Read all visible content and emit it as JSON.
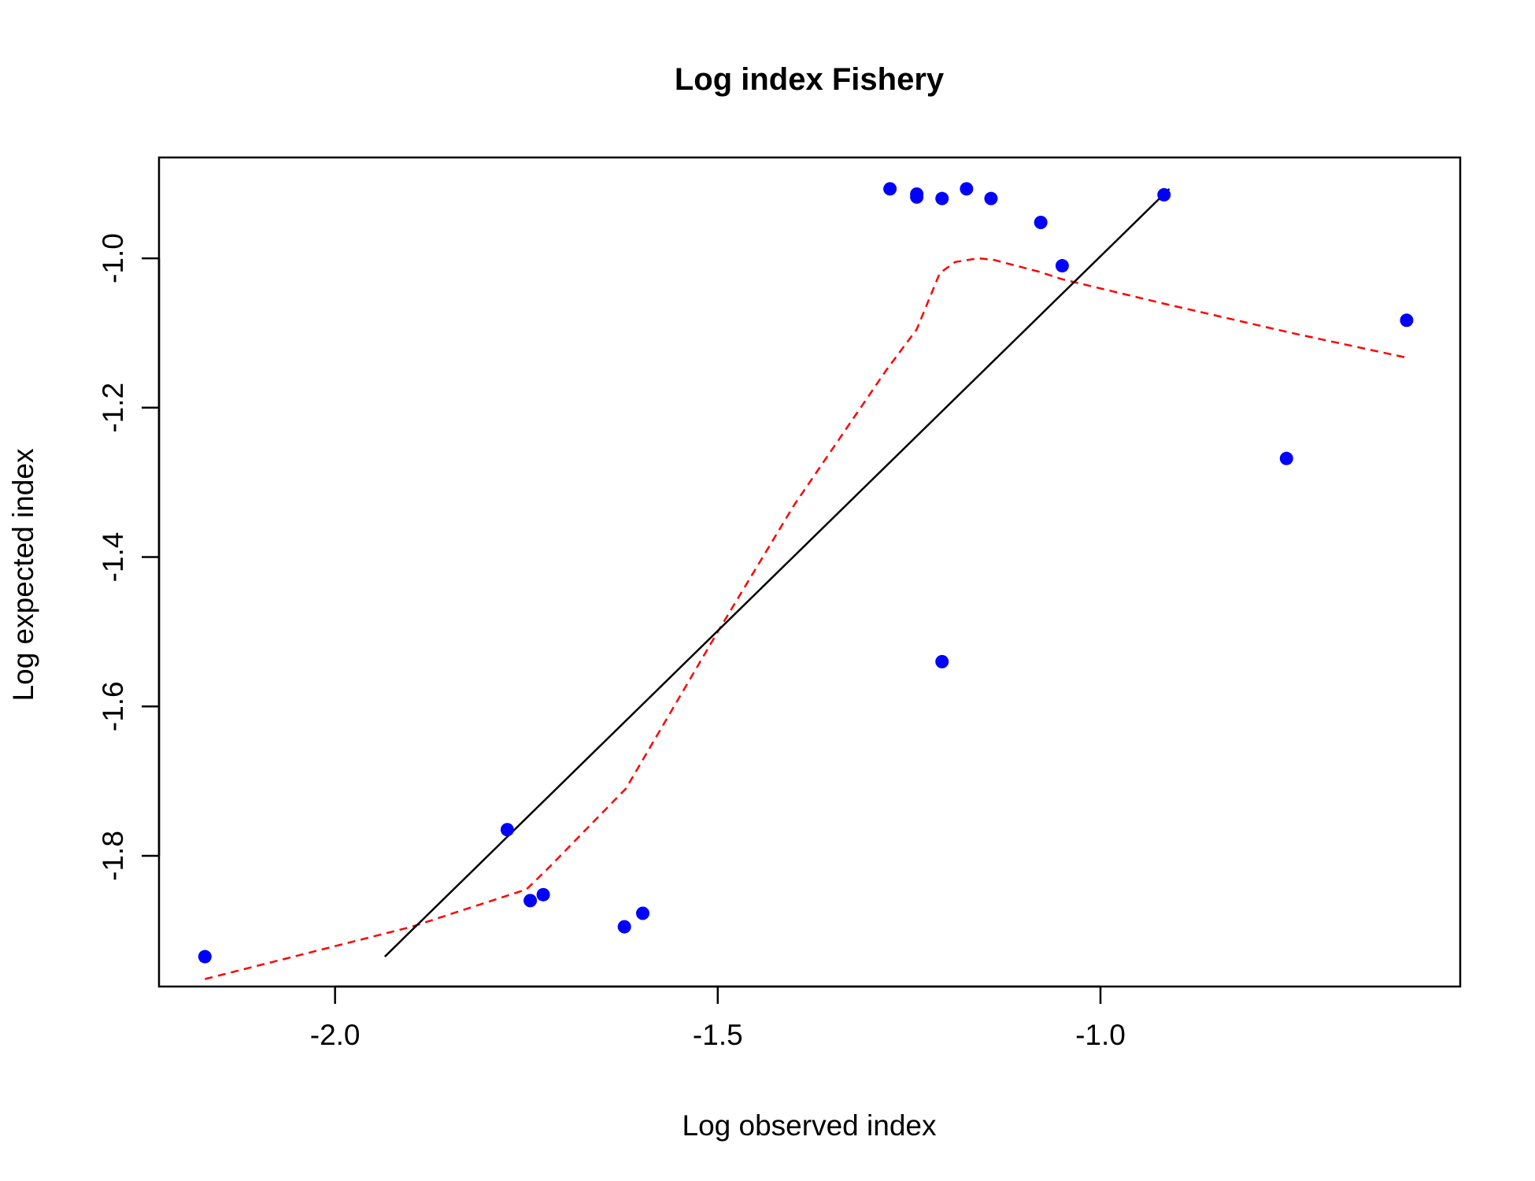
{
  "chart_data": {
    "type": "scatter",
    "title": "Log index Fishery",
    "xlabel": "Log observed index",
    "ylabel": "Log expected index",
    "xlim": [
      -2.23,
      -0.53
    ],
    "ylim": [
      -1.975,
      -0.865
    ],
    "x_ticks": [
      -2.0,
      -1.5,
      -1.0
    ],
    "x_tick_labels": [
      "-2.0",
      "-1.5",
      "-1.0"
    ],
    "y_ticks": [
      -1.8,
      -1.6,
      -1.4,
      -1.2,
      -1.0
    ],
    "y_tick_labels": [
      "-1.8",
      "-1.6",
      "-1.4",
      "-1.2",
      "-1.0"
    ],
    "grid": false,
    "points": {
      "color": "#0000ff",
      "x": [
        -2.17,
        -1.775,
        -1.745,
        -1.728,
        -1.622,
        -1.598,
        -1.275,
        -1.24,
        -1.24,
        -1.207,
        -1.207,
        -1.175,
        -1.143,
        -1.078,
        -1.05,
        -0.917,
        -0.757,
        -0.6
      ],
      "y": [
        -1.935,
        -1.765,
        -1.86,
        -1.852,
        -1.895,
        -1.877,
        -0.907,
        -0.914,
        -0.918,
        -0.92,
        -1.54,
        -0.907,
        -0.92,
        -0.952,
        -1.01,
        -0.915,
        -1.268,
        -1.083
      ]
    },
    "fit_line": {
      "color": "#000000",
      "style": "solid",
      "x": [
        -1.935,
        -0.91
      ],
      "y": [
        -1.935,
        -0.907
      ]
    },
    "smooth_line": {
      "color": "#ff0000",
      "style": "dashed",
      "x": [
        -2.17,
        -1.9,
        -1.75,
        -1.72,
        -1.62,
        -1.5,
        -1.4,
        -1.28,
        -1.24,
        -1.21,
        -1.19,
        -1.16,
        -1.14,
        -1.08,
        -1.05,
        -0.92,
        -0.75,
        -0.6
      ],
      "y": [
        -1.965,
        -1.895,
        -1.845,
        -1.815,
        -1.71,
        -1.5,
        -1.33,
        -1.15,
        -1.095,
        -1.02,
        -1.005,
        -1.0,
        -1.002,
        -1.018,
        -1.028,
        -1.06,
        -1.1,
        -1.133
      ]
    }
  }
}
